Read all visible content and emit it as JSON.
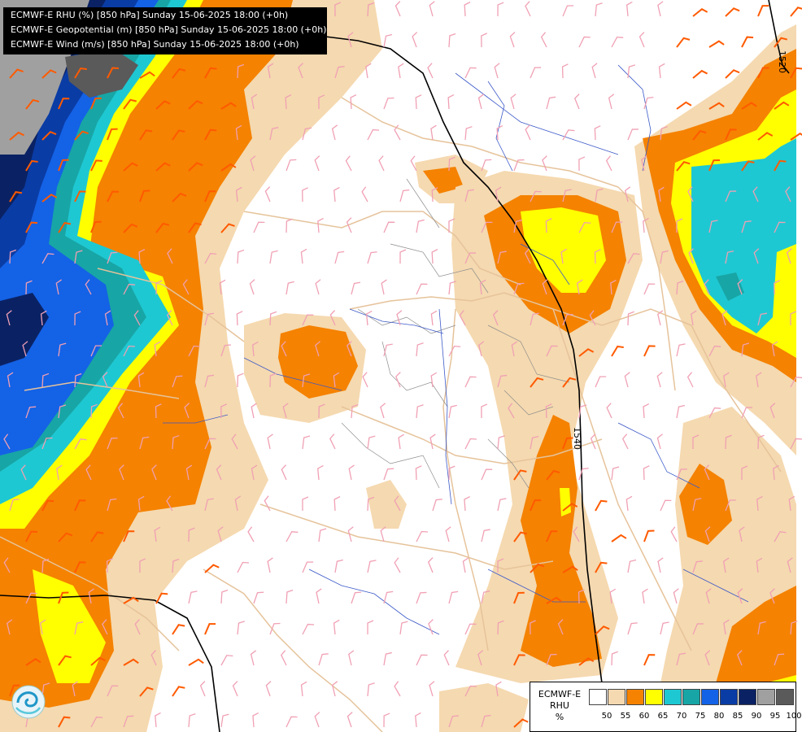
{
  "title_lines": [
    "ECMWF-E RHU (%) [850 hPa] Sunday 15-06-2025 18:00 (+0h)",
    "ECMWF-E Geopotential (m) [850 hPa] Sunday 15-06-2025 18:00 (+0h)",
    "ECMWF-E Wind (m/s) [850 hPa] Sunday 15-06-2025 18:00 (+0h)"
  ],
  "legend": {
    "line1": "ECMWF-E",
    "line2": "RHU",
    "line3": "%",
    "colors": [
      "#ffffff",
      "#f5d9b0",
      "#f58200",
      "#ffff00",
      "#1ec8d2",
      "#18a5a5",
      "#1462e6",
      "#0a3ca5",
      "#0a2264",
      "#a0a0a0",
      "#5a5a5a"
    ],
    "ticks": [
      "50",
      "55",
      "60",
      "65",
      "70",
      "75",
      "80",
      "85",
      "90",
      "95",
      "100"
    ]
  },
  "contour_labels": [
    {
      "text": "1520"
    },
    {
      "text": "1540"
    }
  ],
  "colors": {
    "beige": "#f5d9b0",
    "orange": "#f58200",
    "yellow": "#ffff00",
    "cyan": "#1ec8d2",
    "teal": "#18a5a5",
    "blue": "#1462e6",
    "midblue": "#0a3ca5",
    "darkblue": "#0a2264",
    "lightgray": "#a0a0a0",
    "darkgray": "#5a5a5a",
    "borders": "#e6c39b",
    "rivers": "#3c5ac8",
    "wind_light": "#f0a0b4",
    "wind_strong": "#ff5a00"
  }
}
